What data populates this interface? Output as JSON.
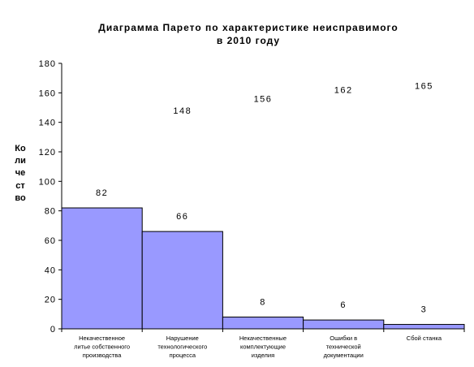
{
  "chart_data": {
    "type": "bar",
    "title": "Диаграмма Парето по характеристике неисправимого в 2010 году",
    "title_lines": [
      "Диаграмма Парето по характеристике неисправимого",
      "в 2010 году"
    ],
    "xlabel": "",
    "ylabel": "Количество",
    "ylim": [
      0,
      180
    ],
    "ytick_step": 20,
    "yticks": [
      "0",
      "20",
      "40",
      "60",
      "80",
      "100",
      "120",
      "140",
      "160",
      "180"
    ],
    "grid": false,
    "legend": "none",
    "categories": [
      "Некачественное литье собственного производства",
      "Нарушение технологического процесса",
      "Некачественные комплектующие изделия",
      "Ошибки в технической документации",
      "Сбой станка"
    ],
    "category_lines": [
      [
        "Некачественное",
        "литье собственного",
        "производства"
      ],
      [
        "Нарушение",
        "технологического",
        "процесса"
      ],
      [
        "Некачественные",
        "комплектующие",
        "изделия"
      ],
      [
        "Ошибки в",
        "технической",
        "документации"
      ],
      [
        "Сбой станка"
      ]
    ],
    "values": [
      82,
      66,
      8,
      6,
      3
    ],
    "cumulative": [
      null,
      148,
      156,
      162,
      165
    ],
    "value_labels": [
      "82",
      "66",
      "8",
      "6",
      "3"
    ],
    "cumulative_labels": [
      "148",
      "156",
      "162",
      "165"
    ],
    "bar_color": "#9999ff",
    "bar_edge_color": "#000000",
    "background_color": "#ffffff"
  }
}
